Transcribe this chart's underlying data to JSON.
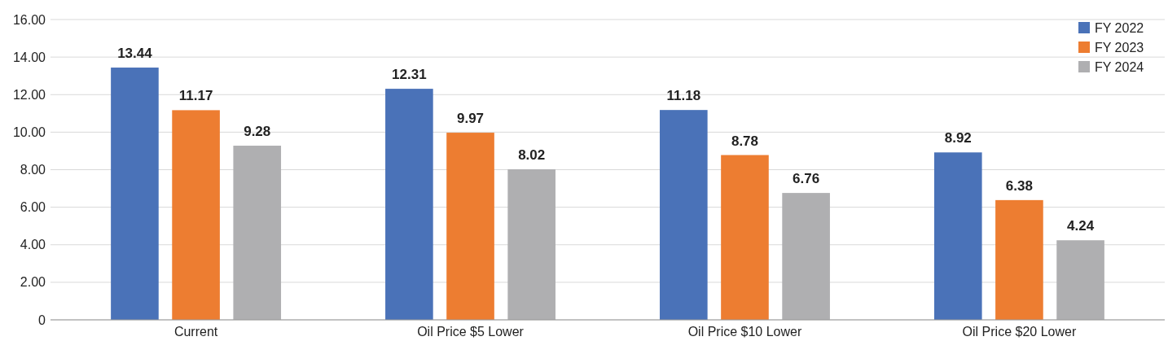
{
  "chart_data": {
    "type": "bar",
    "categories": [
      "Current",
      "Oil Price $5 Lower",
      "Oil Price $10 Lower",
      "Oil Price $20 Lower"
    ],
    "series": [
      {
        "name": "FY 2022",
        "color": "#4a72b8",
        "values": [
          13.44,
          12.31,
          11.18,
          8.92
        ]
      },
      {
        "name": "FY 2023",
        "color": "#ed7d31",
        "values": [
          11.17,
          9.97,
          8.78,
          6.38
        ]
      },
      {
        "name": "FY 2024",
        "color": "#afafb1",
        "values": [
          9.28,
          8.02,
          6.76,
          4.24
        ]
      }
    ],
    "ylim": [
      0,
      16
    ],
    "yticks": [
      0,
      {
        "value": 2,
        "label": "2.00"
      },
      {
        "value": 4,
        "label": "4.00"
      },
      {
        "value": 6,
        "label": "6.00"
      },
      {
        "value": 8,
        "label": "8.00"
      },
      {
        "value": 10,
        "label": "10.00"
      },
      {
        "value": 12,
        "label": "12.00"
      },
      {
        "value": 14,
        "label": "14.00"
      },
      {
        "value": 16,
        "label": "16.00"
      }
    ],
    "grid": "y",
    "legend": "top right",
    "data_labels": true
  }
}
